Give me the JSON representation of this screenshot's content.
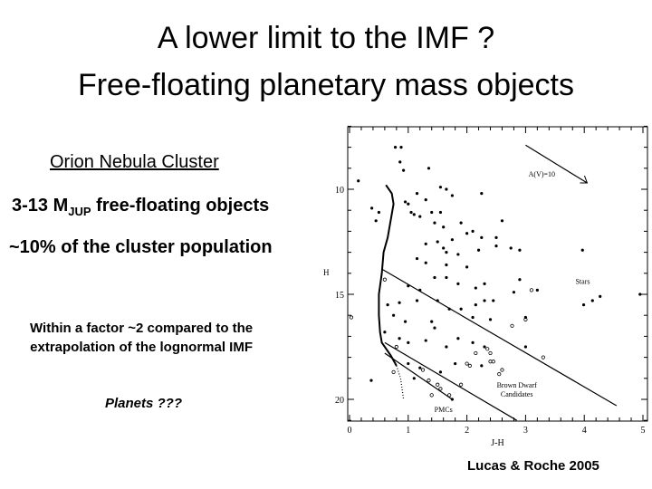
{
  "title": {
    "line1": "A lower limit to the IMF ?",
    "line2": "Free-floating planetary mass objects"
  },
  "left": {
    "cluster": "Orion Nebula Cluster",
    "mass_prefix": "3-13 M",
    "mass_sub": "JUP",
    "mass_suffix": " free-floating objects",
    "fraction": "~10% of the cluster population",
    "compare_line1": "Within a factor ~2 compared to the",
    "compare_line2": "extrapolation of the lognormal IMF",
    "planets": "Planets ???"
  },
  "citation": "Lucas & Roche 2005",
  "chart_data": {
    "type": "scatter",
    "xlabel": "J-H",
    "ylabel": "H",
    "xlim": [
      0,
      5
    ],
    "ylim": [
      21,
      7
    ],
    "xticks": [
      "0",
      "1",
      "2",
      "3",
      "4",
      "5"
    ],
    "yticks": [
      "10",
      "15",
      "20"
    ],
    "annotations": {
      "reddening": "A(V)=10",
      "stars": "Stars",
      "bd1": "Brown Dwarf",
      "bd2": "Candidates",
      "pmc": "PMCs"
    },
    "filled": [
      [
        0.15,
        9.6
      ],
      [
        0.78,
        8.0
      ],
      [
        0.88,
        8.0
      ],
      [
        0.86,
        8.7
      ],
      [
        0.92,
        9.1
      ],
      [
        1.35,
        9.0
      ],
      [
        1.55,
        9.9
      ],
      [
        1.65,
        10.0
      ],
      [
        1.75,
        10.3
      ],
      [
        2.25,
        10.2
      ],
      [
        1.15,
        10.2
      ],
      [
        1.3,
        10.5
      ],
      [
        0.95,
        10.6
      ],
      [
        1.0,
        10.7
      ],
      [
        0.38,
        10.9
      ],
      [
        0.5,
        11.1
      ],
      [
        0.45,
        11.5
      ],
      [
        1.05,
        11.1
      ],
      [
        1.1,
        11.2
      ],
      [
        1.2,
        11.3
      ],
      [
        1.4,
        11.1
      ],
      [
        1.55,
        11.1
      ],
      [
        1.45,
        11.6
      ],
      [
        1.6,
        11.8
      ],
      [
        1.9,
        11.6
      ],
      [
        2.0,
        12.1
      ],
      [
        2.1,
        12.0
      ],
      [
        2.25,
        12.3
      ],
      [
        2.6,
        11.5
      ],
      [
        2.5,
        12.3
      ],
      [
        1.3,
        12.6
      ],
      [
        1.5,
        12.5
      ],
      [
        1.75,
        12.4
      ],
      [
        1.6,
        12.8
      ],
      [
        1.65,
        13.0
      ],
      [
        1.85,
        13.1
      ],
      [
        2.2,
        12.9
      ],
      [
        2.75,
        12.8
      ],
      [
        2.9,
        12.9
      ],
      [
        3.97,
        12.9
      ],
      [
        2.5,
        12.7
      ],
      [
        1.15,
        13.3
      ],
      [
        1.3,
        13.5
      ],
      [
        1.65,
        13.6
      ],
      [
        2.0,
        13.7
      ],
      [
        1.45,
        14.2
      ],
      [
        1.65,
        14.2
      ],
      [
        2.9,
        14.3
      ],
      [
        1.85,
        14.5
      ],
      [
        2.15,
        14.7
      ],
      [
        2.3,
        14.5
      ],
      [
        1.0,
        14.6
      ],
      [
        1.2,
        14.8
      ],
      [
        2.8,
        14.9
      ],
      [
        3.2,
        14.8
      ],
      [
        3.99,
        15.5
      ],
      [
        4.14,
        15.3
      ],
      [
        4.27,
        15.1
      ],
      [
        4.95,
        15.0
      ],
      [
        0.65,
        15.5
      ],
      [
        0.85,
        15.4
      ],
      [
        1.15,
        15.3
      ],
      [
        1.5,
        15.3
      ],
      [
        1.7,
        15.7
      ],
      [
        1.9,
        15.7
      ],
      [
        2.15,
        15.5
      ],
      [
        2.3,
        15.3
      ],
      [
        2.45,
        15.3
      ],
      [
        3.0,
        16.1
      ],
      [
        0.75,
        16.0
      ],
      [
        0.95,
        16.3
      ],
      [
        1.4,
        16.3
      ],
      [
        1.45,
        16.6
      ],
      [
        2.1,
        16.1
      ],
      [
        2.4,
        16.2
      ],
      [
        0.6,
        16.8
      ],
      [
        0.85,
        17.1
      ],
      [
        1.0,
        17.3
      ],
      [
        1.3,
        17.2
      ],
      [
        1.65,
        17.5
      ],
      [
        1.85,
        17.1
      ],
      [
        2.1,
        17.3
      ],
      [
        2.3,
        17.5
      ],
      [
        3.0,
        17.5
      ],
      [
        1.0,
        18.3
      ],
      [
        1.2,
        18.5
      ],
      [
        1.55,
        18.7
      ],
      [
        1.8,
        18.3
      ],
      [
        2.25,
        18.4
      ],
      [
        0.37,
        19.1
      ],
      [
        1.1,
        19.0
      ],
      [
        1.75,
        20.0
      ]
    ],
    "open": [
      [
        0.03,
        16.1
      ],
      [
        0.6,
        14.3
      ],
      [
        3.1,
        14.8
      ],
      [
        3.0,
        16.2
      ],
      [
        2.77,
        16.5
      ],
      [
        0.8,
        17.5
      ],
      [
        2.35,
        17.6
      ],
      [
        2.4,
        17.8
      ],
      [
        2.15,
        17.8
      ],
      [
        3.3,
        18.0
      ],
      [
        2.0,
        18.3
      ],
      [
        2.05,
        18.4
      ],
      [
        2.45,
        18.2
      ],
      [
        2.4,
        18.2
      ],
      [
        1.25,
        18.6
      ],
      [
        2.6,
        18.6
      ],
      [
        2.55,
        18.8
      ],
      [
        0.75,
        18.7
      ],
      [
        1.35,
        19.1
      ],
      [
        1.5,
        19.3
      ],
      [
        1.55,
        19.5
      ],
      [
        1.4,
        19.8
      ],
      [
        1.7,
        19.8
      ],
      [
        1.9,
        19.3
      ]
    ],
    "lines": {
      "stars_boundary": [
        [
          0.55,
          13.8
        ],
        [
          4.55,
          20.3
        ]
      ],
      "bd_boundary": [
        [
          0.6,
          17.3
        ],
        [
          2.85,
          21.0
        ]
      ],
      "pmc_boundary": [
        [
          0.6,
          17.8
        ],
        [
          1.75,
          20.0
        ]
      ],
      "isochrone": [
        [
          0.62,
          9.8
        ],
        [
          0.72,
          10.2
        ],
        [
          0.75,
          10.7
        ],
        [
          0.7,
          11.5
        ],
        [
          0.65,
          12.3
        ],
        [
          0.58,
          13.0
        ],
        [
          0.55,
          14.0
        ],
        [
          0.5,
          15.0
        ],
        [
          0.5,
          16.0
        ],
        [
          0.52,
          16.8
        ],
        [
          0.55,
          17.3
        ],
        [
          0.7,
          17.9
        ],
        [
          0.8,
          18.4
        ]
      ],
      "dotted": [
        [
          0.8,
          18.4
        ],
        [
          0.87,
          19.0
        ],
        [
          0.92,
          20.0
        ]
      ],
      "arrow": [
        [
          3.0,
          7.9
        ],
        [
          4.05,
          9.7
        ]
      ]
    }
  }
}
